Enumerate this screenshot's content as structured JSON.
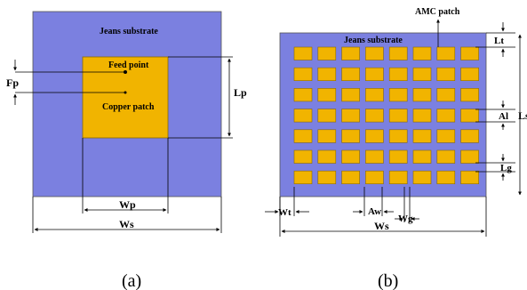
{
  "figure_a": {
    "substrate_label": "Jeans substrate",
    "feed_label": "Feed point",
    "patch_label": "Copper patch",
    "fp_label": "Fp",
    "lp_label": "Lp",
    "wp_label": "Wp",
    "ws_label": "Ws",
    "caption": "(a)",
    "colors": {
      "substrate": "#7b80e0",
      "patch": "#f1b400"
    }
  },
  "figure_b": {
    "amc_label": "AMC patch",
    "substrate_label": "Jeans substrate",
    "lt_label": "Lt",
    "al_label": "Al",
    "ls_label": "Ls",
    "lg_label": "Lg",
    "wt_label": "Wt",
    "aw_label": "Aw",
    "wg_label": "Wg",
    "ws_label": "Ws",
    "caption": "(b)",
    "grid": {
      "rows": 7,
      "cols": 8
    },
    "colors": {
      "substrate": "#7b80e0",
      "cell": "#f1b400",
      "cell_border": "#8a6a00"
    }
  }
}
